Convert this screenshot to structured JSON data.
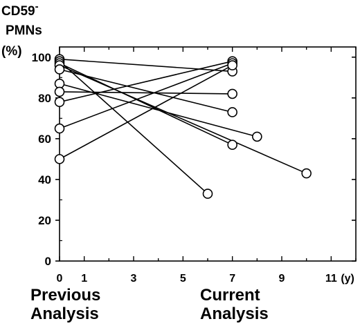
{
  "chart_data": {
    "type": "line",
    "ylabel_lines": [
      "CD59",
      "PMNs",
      "(%)"
    ],
    "ylabel_superscript": "-",
    "x_tick_labels": [
      "0",
      "1",
      "3",
      "5",
      "7",
      "9",
      "11"
    ],
    "x_unit": "(y)",
    "y_tick_labels": [
      "0",
      "20",
      "40",
      "60",
      "80",
      "100"
    ],
    "xlim": [
      0,
      12
    ],
    "ylim": [
      0,
      105
    ],
    "group_labels": {
      "previous": [
        "Previous",
        "Analysis"
      ],
      "current": [
        "Current",
        "Analysis"
      ]
    },
    "series": [
      {
        "x": [
          0,
          7
        ],
        "y": [
          99,
          93
        ]
      },
      {
        "x": [
          0,
          6
        ],
        "y": [
          98,
          33
        ]
      },
      {
        "x": [
          0,
          7
        ],
        "y": [
          97,
          57
        ]
      },
      {
        "x": [
          0,
          10
        ],
        "y": [
          96,
          43
        ]
      },
      {
        "x": [
          0,
          7
        ],
        "y": [
          94,
          73
        ]
      },
      {
        "x": [
          0,
          8
        ],
        "y": [
          87,
          61
        ]
      },
      {
        "x": [
          0,
          7
        ],
        "y": [
          83,
          82
        ]
      },
      {
        "x": [
          0,
          7
        ],
        "y": [
          78,
          98
        ]
      },
      {
        "x": [
          0,
          7
        ],
        "y": [
          65,
          97
        ]
      },
      {
        "x": [
          0,
          7
        ],
        "y": [
          50,
          96
        ]
      }
    ],
    "colors": {
      "line": "#000000",
      "marker_fill": "#ffffff"
    }
  }
}
